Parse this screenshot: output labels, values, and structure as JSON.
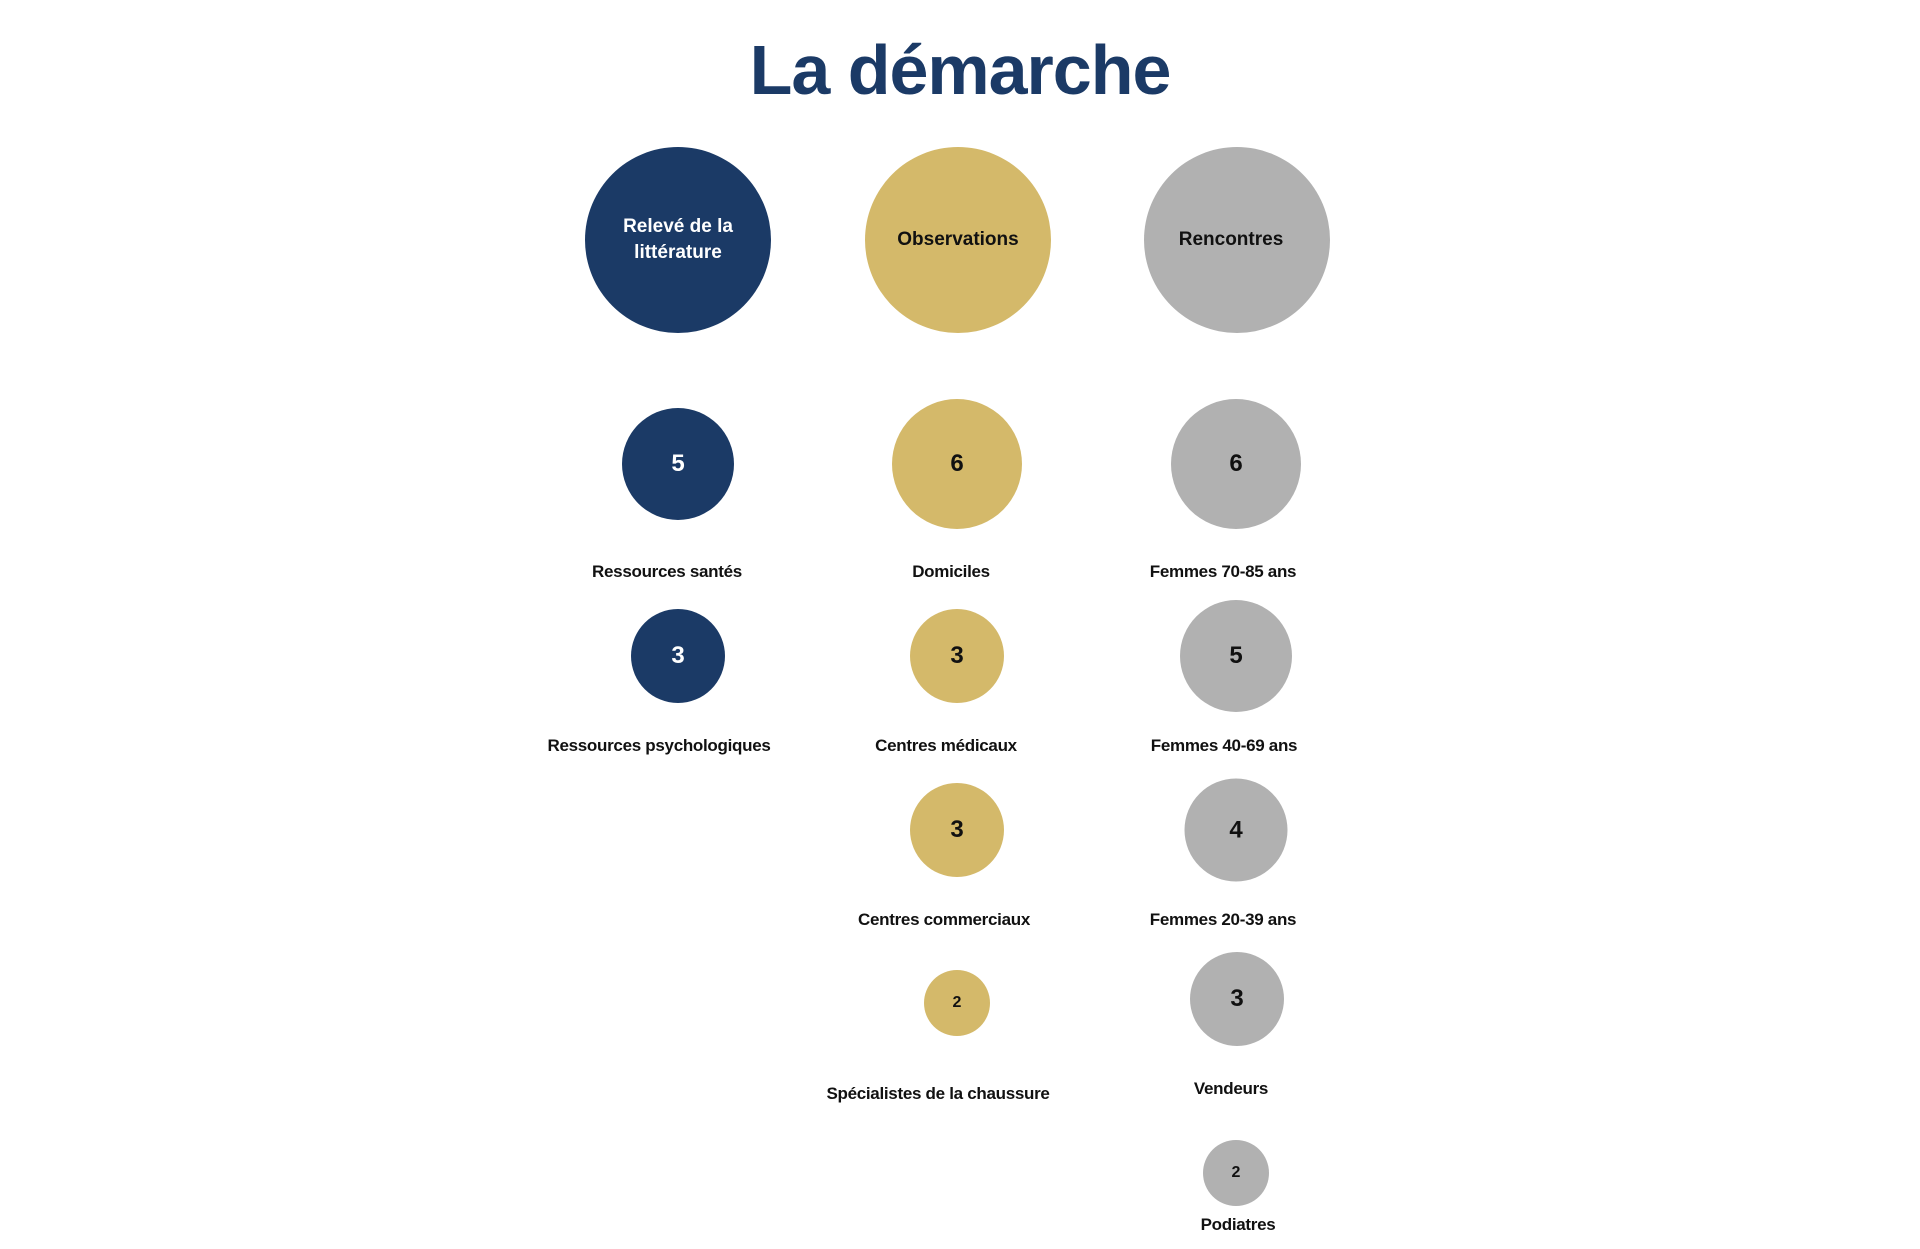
{
  "title": "La démarche",
  "colors": {
    "literature": "#1b3a66",
    "observations": "#d4b96a",
    "meetings": "#b1b1b1"
  },
  "columns": [
    {
      "heading": "Relevé de la littérature",
      "items": [
        {
          "value": "5",
          "label": "Ressources santés"
        },
        {
          "value": "3",
          "label": "Ressources psychologiques"
        }
      ]
    },
    {
      "heading": "Observations",
      "items": [
        {
          "value": "6",
          "label": "Domiciles"
        },
        {
          "value": "3",
          "label": "Centres médicaux"
        },
        {
          "value": "3",
          "label": "Centres commerciaux"
        },
        {
          "value": "2",
          "label": "Spécialistes de la chaussure"
        }
      ]
    },
    {
      "heading": "Rencontres",
      "items": [
        {
          "value": "6",
          "label": "Femmes 70-85 ans"
        },
        {
          "value": "5",
          "label": "Femmes 40-69 ans"
        },
        {
          "value": "4",
          "label": "Femmes 20-39 ans"
        },
        {
          "value": "3",
          "label": "Vendeurs"
        },
        {
          "value": "2",
          "label": "Podiatres"
        }
      ]
    }
  ]
}
